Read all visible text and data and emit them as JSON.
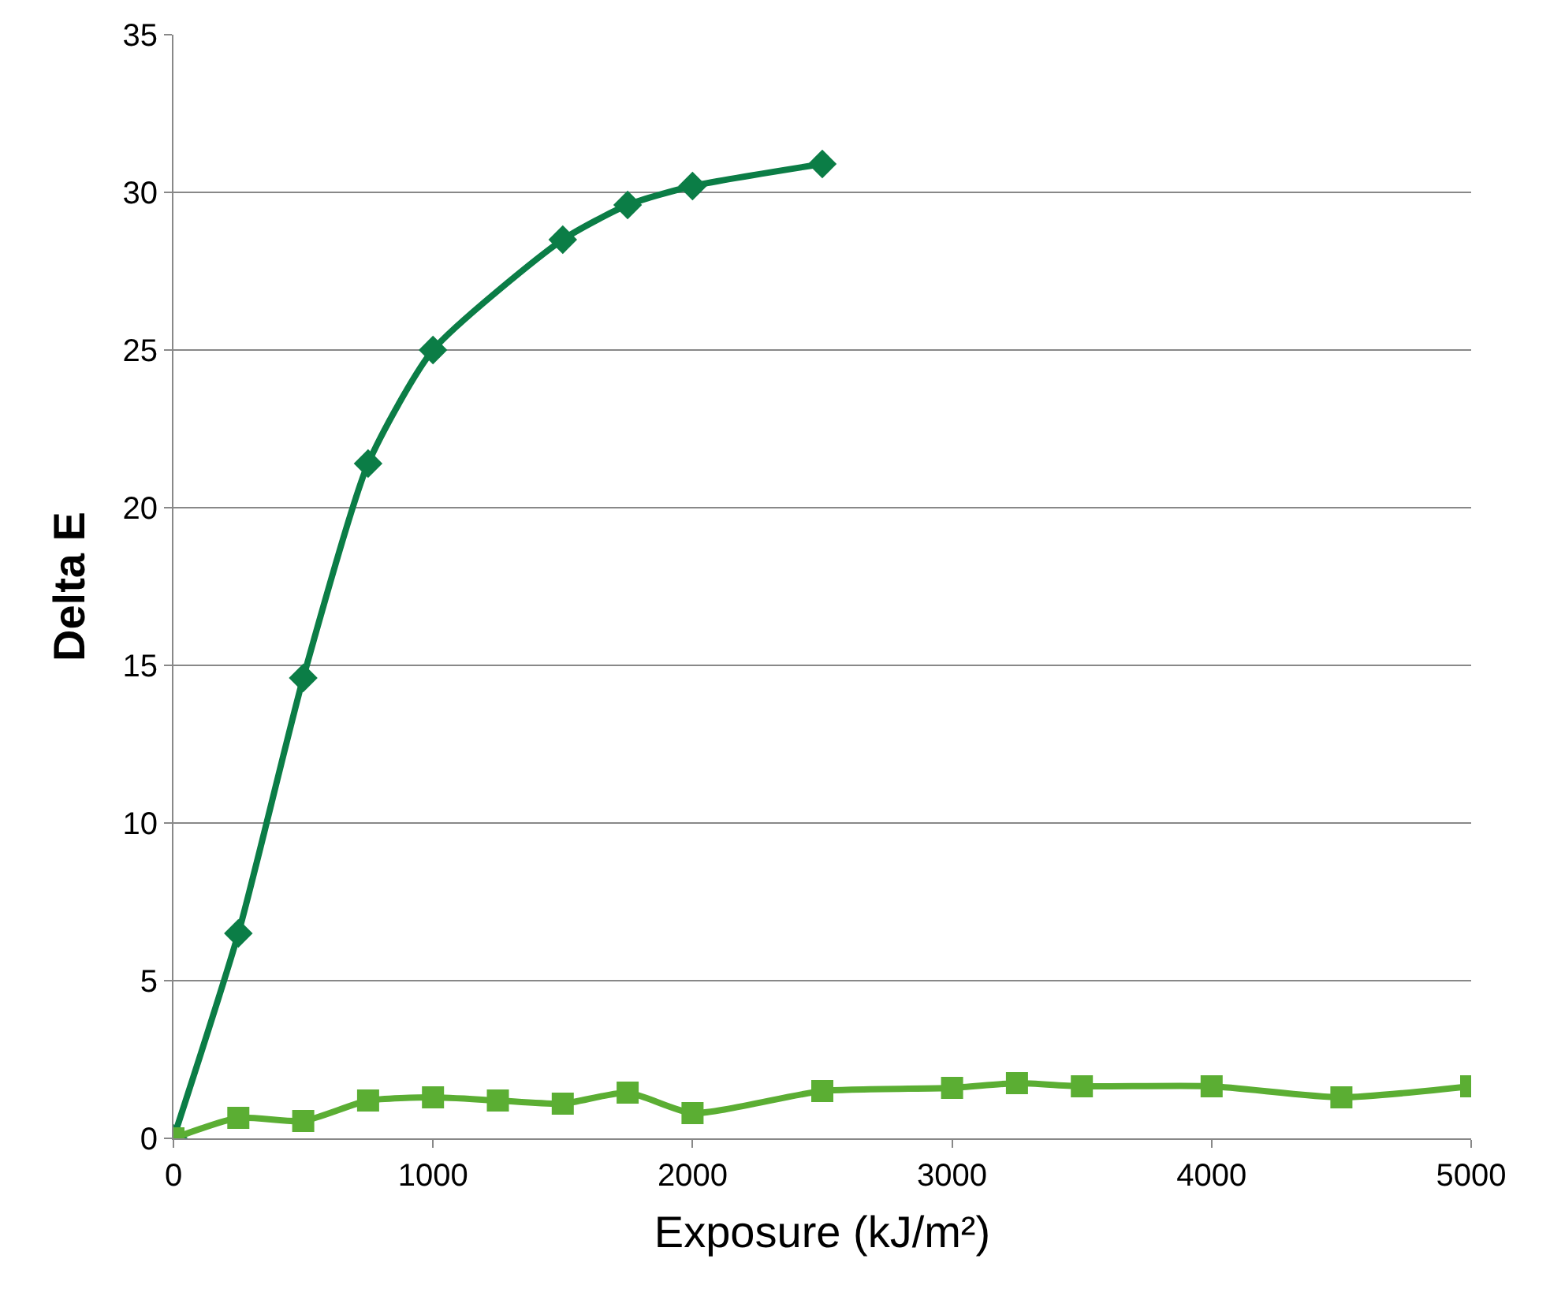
{
  "chart_data": {
    "type": "line",
    "xlabel": "Exposure (kJ/m²)",
    "ylabel": "Delta E",
    "xlim": [
      0,
      5000
    ],
    "xticks": [
      0,
      1000,
      2000,
      3000,
      4000,
      5000
    ],
    "ylim": [
      0,
      35
    ],
    "yticks": [
      0,
      5,
      10,
      15,
      20,
      25,
      30,
      35
    ],
    "grid": "y",
    "line_style": "solid",
    "series": [
      {
        "color": "#0b7d46",
        "marker": "diamond",
        "x": [
          0,
          250,
          500,
          750,
          1000,
          1500,
          1750,
          2000,
          2500
        ],
        "values": [
          0,
          6.5,
          14.6,
          21.4,
          25.0,
          28.5,
          29.6,
          30.2,
          30.9
        ]
      },
      {
        "color": "#5bae33",
        "marker": "square",
        "x": [
          0,
          250,
          500,
          750,
          1000,
          1250,
          1500,
          1750,
          2000,
          2500,
          3000,
          3250,
          3500,
          4000,
          4500,
          5000
        ],
        "values": [
          0,
          0.65,
          0.55,
          1.2,
          1.3,
          1.2,
          1.1,
          1.45,
          0.8,
          1.5,
          1.6,
          1.75,
          1.65,
          1.65,
          1.3,
          1.65
        ]
      }
    ]
  }
}
